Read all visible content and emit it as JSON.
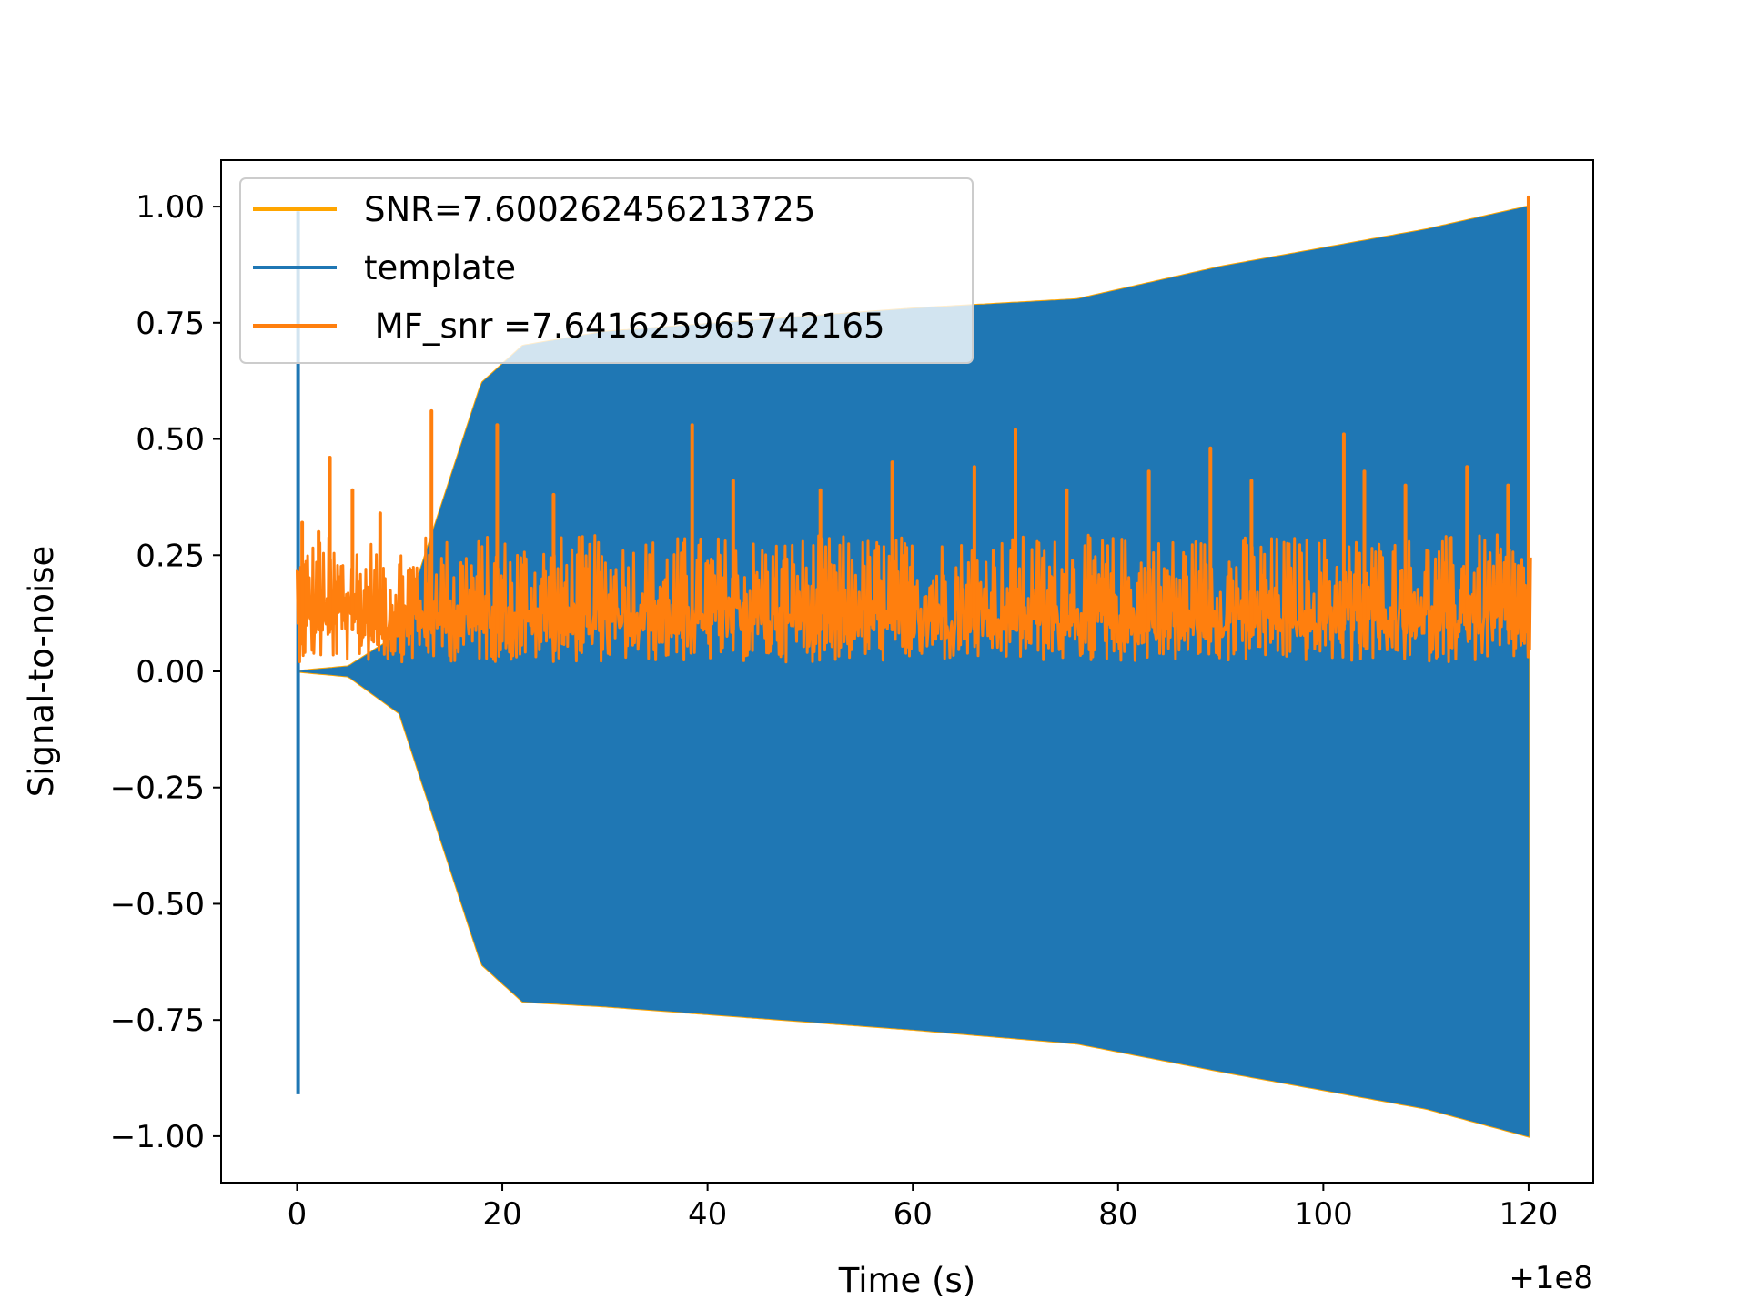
{
  "chart_data": {
    "type": "line",
    "xlabel": "Time (s)",
    "ylabel": "Signal-to-noise",
    "x_offset_label": "+1e8",
    "xlim": [
      -7.4,
      126.3
    ],
    "ylim": [
      -1.1,
      1.1
    ],
    "x_ticks": [
      0,
      20,
      40,
      60,
      80,
      100,
      120
    ],
    "x_tick_labels": [
      "0",
      "20",
      "40",
      "60",
      "80",
      "100",
      "120"
    ],
    "y_ticks": [
      1.0,
      0.75,
      0.5,
      0.25,
      0.0,
      -0.25,
      -0.5,
      -0.75,
      -1.0
    ],
    "y_tick_labels": [
      "1.00",
      "0.75",
      "0.50",
      "0.25",
      "0.00",
      "−0.25",
      "−0.50",
      "−0.75",
      "−1.00"
    ],
    "legend_position": "upper-left",
    "series": [
      {
        "name": "SNR=7.600262456213725",
        "color": "#ffa500",
        "style": "envelope",
        "upper": [
          [
            0.1,
            0.0
          ],
          [
            5,
            0.01
          ],
          [
            10,
            0.08
          ],
          [
            14,
            0.35
          ],
          [
            18,
            0.62
          ],
          [
            22,
            0.7
          ],
          [
            30,
            0.73
          ],
          [
            60,
            0.78
          ],
          [
            76,
            0.8
          ],
          [
            90,
            0.87
          ],
          [
            110,
            0.95
          ],
          [
            120,
            1.0
          ]
        ],
        "lower": [
          [
            0.1,
            0.0
          ],
          [
            5,
            -0.01
          ],
          [
            10,
            -0.09
          ],
          [
            14,
            -0.36
          ],
          [
            18,
            -0.63
          ],
          [
            22,
            -0.71
          ],
          [
            30,
            -0.72
          ],
          [
            60,
            -0.77
          ],
          [
            76,
            -0.8
          ],
          [
            90,
            -0.86
          ],
          [
            110,
            -0.94
          ],
          [
            120,
            -1.0
          ]
        ]
      },
      {
        "name": "template",
        "color": "#1f77b4",
        "style": "envelope",
        "upper": [
          [
            0.1,
            0.0
          ],
          [
            5,
            0.01
          ],
          [
            10,
            0.08
          ],
          [
            14,
            0.35
          ],
          [
            18,
            0.62
          ],
          [
            22,
            0.7
          ],
          [
            30,
            0.73
          ],
          [
            60,
            0.78
          ],
          [
            76,
            0.8
          ],
          [
            90,
            0.87
          ],
          [
            110,
            0.95
          ],
          [
            120,
            1.0
          ]
        ],
        "lower": [
          [
            0.1,
            0.0
          ],
          [
            5,
            -0.01
          ],
          [
            10,
            -0.09
          ],
          [
            14,
            -0.36
          ],
          [
            18,
            -0.63
          ],
          [
            22,
            -0.71
          ],
          [
            30,
            -0.72
          ],
          [
            60,
            -0.77
          ],
          [
            76,
            -0.8
          ],
          [
            90,
            -0.86
          ],
          [
            110,
            -0.94
          ],
          [
            120,
            -1.0
          ]
        ],
        "spike": {
          "x": 0.1,
          "y_max": 0.99,
          "y_min": -0.91
        }
      },
      {
        "name": " MF_snr =7.641625965742165",
        "color": "#ff7f0e",
        "style": "noise",
        "x_range": [
          0,
          120.2
        ],
        "baseline": 0.14,
        "peaks": [
          [
            0.5,
            0.32
          ],
          [
            2.1,
            0.3
          ],
          [
            3.2,
            0.46
          ],
          [
            5.4,
            0.39
          ],
          [
            8.1,
            0.34
          ],
          [
            13.1,
            0.56
          ],
          [
            19.5,
            0.53
          ],
          [
            25,
            0.38
          ],
          [
            38.5,
            0.53
          ],
          [
            42.5,
            0.41
          ],
          [
            51,
            0.39
          ],
          [
            58,
            0.45
          ],
          [
            66,
            0.44
          ],
          [
            70,
            0.52
          ],
          [
            75,
            0.39
          ],
          [
            83,
            0.43
          ],
          [
            89,
            0.48
          ],
          [
            93,
            0.41
          ],
          [
            102,
            0.51
          ],
          [
            104,
            0.43
          ],
          [
            108,
            0.4
          ],
          [
            114,
            0.44
          ],
          [
            118,
            0.4
          ],
          [
            120,
            1.02
          ]
        ]
      }
    ]
  }
}
